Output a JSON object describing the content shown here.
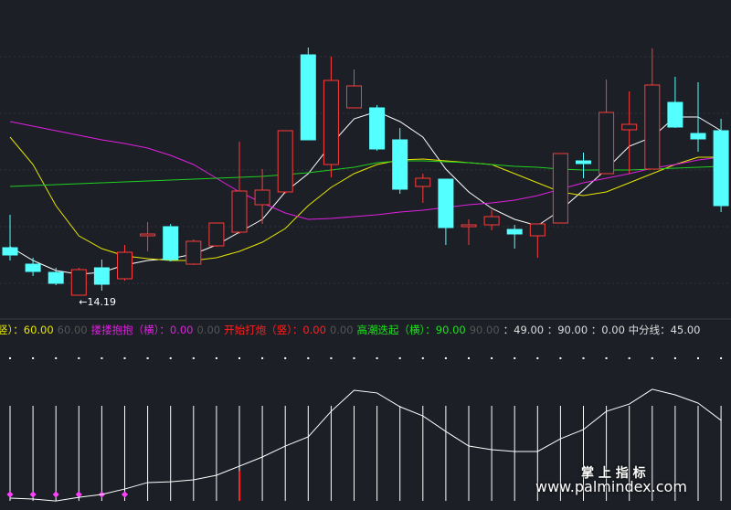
{
  "chart_data": [
    {
      "type": "candlestick",
      "up_color": "#ff3b3b",
      "down_color": "#54ffff",
      "ylim": [
        13.85,
        20.65
      ],
      "open": [
        15.23,
        14.87,
        14.69,
        14.19,
        14.79,
        14.55,
        15.49,
        15.69,
        14.87,
        15.27,
        15.57,
        16.17,
        16.45,
        19.45,
        17.05,
        18.29,
        18.29,
        17.59,
        16.57,
        16.73,
        15.69,
        15.73,
        15.63,
        15.49,
        15.77,
        17.13,
        16.85,
        17.81,
        16.95,
        18.41,
        17.73,
        17.79
      ],
      "high": [
        15.95,
        15.01,
        14.79,
        14.79,
        14.97,
        15.29,
        15.79,
        15.75,
        15.41,
        15.77,
        17.55,
        16.95,
        17.79,
        19.61,
        19.41,
        19.13,
        18.35,
        17.85,
        16.85,
        16.73,
        15.85,
        16.05,
        15.73,
        15.75,
        17.29,
        17.31,
        18.91,
        18.65,
        19.59,
        18.97,
        18.85,
        18.05
      ],
      "low": [
        14.95,
        14.61,
        14.41,
        14.19,
        14.29,
        14.51,
        15.15,
        14.93,
        14.85,
        15.25,
        15.53,
        15.75,
        16.41,
        17.59,
        16.77,
        18.29,
        17.35,
        16.41,
        16.21,
        15.29,
        15.29,
        15.61,
        15.21,
        15.01,
        15.77,
        16.75,
        16.85,
        16.85,
        16.95,
        17.85,
        17.33,
        16.01
      ],
      "close": [
        15.07,
        14.71,
        14.45,
        14.75,
        14.43,
        15.13,
        15.53,
        14.97,
        15.37,
        15.77,
        16.47,
        16.49,
        17.79,
        17.59,
        18.89,
        18.77,
        17.39,
        16.51,
        16.75,
        15.67,
        15.73,
        15.91,
        15.53,
        15.75,
        17.29,
        17.07,
        18.19,
        17.93,
        18.79,
        17.87,
        17.61,
        16.15
      ],
      "lines": [
        {
          "color": "#ffffff",
          "values": [
            15.25,
            14.95,
            14.73,
            14.65,
            14.69,
            14.85,
            14.95,
            14.99,
            15.09,
            15.29,
            15.57,
            15.85,
            16.45,
            16.85,
            17.49,
            18.05,
            18.21,
            17.99,
            17.65,
            16.95,
            16.45,
            16.09,
            15.85,
            15.71,
            16.05,
            16.49,
            16.95,
            17.45,
            17.65,
            18.09,
            18.09,
            17.79
          ]
        },
        {
          "color": "#e6e600",
          "values": [
            17.65,
            17.05,
            16.15,
            15.49,
            15.21,
            15.05,
            14.99,
            14.95,
            14.95,
            15.01,
            15.15,
            15.35,
            15.65,
            16.15,
            16.55,
            16.85,
            17.05,
            17.15,
            17.17,
            17.13,
            17.09,
            17.05,
            16.85,
            16.65,
            16.45,
            16.37,
            16.45,
            16.65,
            16.85,
            17.05,
            17.21,
            17.21
          ]
        },
        {
          "color": "#e020e0",
          "values": [
            17.99,
            17.89,
            17.79,
            17.69,
            17.59,
            17.51,
            17.41,
            17.25,
            17.05,
            16.75,
            16.45,
            16.21,
            15.99,
            15.85,
            15.87,
            15.91,
            15.95,
            16.01,
            16.05,
            16.11,
            16.17,
            16.21,
            16.27,
            16.37,
            16.51,
            16.65,
            16.75,
            16.85,
            16.97,
            17.05,
            17.15,
            17.21
          ]
        },
        {
          "color": "#20d020",
          "values": [
            16.57,
            16.59,
            16.61,
            16.63,
            16.65,
            16.67,
            16.69,
            16.71,
            16.73,
            16.75,
            16.77,
            16.79,
            16.83,
            16.87,
            16.93,
            16.99,
            17.09,
            17.13,
            17.13,
            17.11,
            17.09,
            17.05,
            17.01,
            16.99,
            16.95,
            16.93,
            16.93,
            16.93,
            16.95,
            16.97,
            16.99,
            17.01
          ]
        }
      ],
      "annotation": {
        "label": "←14.19",
        "value": 14.19
      }
    },
    {
      "type": "indicator",
      "ylim": [
        -4,
        94
      ],
      "legend": [
        {
          "text": "竖）：60.00",
          "color": "#e6e600"
        },
        {
          "text": "60.00",
          "color": "#555555"
        },
        {
          "text": "搂搂抱抱（横）：0.00",
          "color": "#e020e0"
        },
        {
          "text": "0.00",
          "color": "#555555"
        },
        {
          "text": "开始打炮（竖）：0.00",
          "color": "#ff2020"
        },
        {
          "text": "0.00",
          "color": "#555555"
        },
        {
          "text": "高潮迭起（横）：90.00",
          "color": "#20e020"
        },
        {
          "text": "90.00",
          "color": "#555555"
        },
        {
          "text": "：49.00 ：90.00 ：0.00 中分线：45.00",
          "color": "#dddddd"
        }
      ],
      "series": [
        {
          "kind": "sticks",
          "color": "#ffffff",
          "values": [
            60,
            60,
            60,
            60,
            60,
            60,
            60,
            60,
            60,
            60,
            60,
            60,
            60,
            60,
            60,
            60,
            60,
            60,
            60,
            60,
            60,
            60,
            60,
            60,
            60,
            60,
            60,
            60,
            60,
            60,
            60,
            60
          ]
        },
        {
          "kind": "sticks",
          "color": "#ff2020",
          "values": [
            null,
            null,
            null,
            null,
            null,
            null,
            null,
            null,
            null,
            null,
            19,
            null,
            null,
            null,
            null,
            null,
            null,
            null,
            null,
            null,
            null,
            null,
            null,
            null,
            null,
            null,
            null,
            null,
            null,
            null,
            null,
            null
          ]
        },
        {
          "kind": "dots",
          "color": "#ffffff",
          "values": [
            90,
            90,
            90,
            90,
            90,
            90,
            90,
            90,
            90,
            90,
            90,
            90,
            90,
            90,
            90,
            90,
            90,
            90,
            90,
            90,
            90,
            90,
            90,
            90,
            90,
            90,
            90,
            90,
            90,
            90,
            90,
            90
          ]
        },
        {
          "kind": "diamonds",
          "color": "#ff40ff",
          "values": [
            0,
            0,
            0,
            0,
            0,
            0,
            null,
            null,
            null,
            null,
            null,
            null,
            null,
            null,
            null,
            null,
            null,
            null,
            null,
            null,
            null,
            null,
            null,
            null,
            null,
            null,
            null,
            null,
            null,
            null,
            null,
            null
          ]
        },
        {
          "kind": "line",
          "color": "#ffffff",
          "values": [
            1.8,
            1.2,
            0.0,
            2.3,
            4.1,
            7.5,
            11.6,
            12.1,
            13.3,
            16.2,
            21.9,
            27.7,
            34.6,
            40.4,
            56.5,
            69.8,
            68.1,
            59.4,
            53.6,
            43.8,
            34.6,
            32.3,
            31.2,
            31.2,
            39.2,
            45.0,
            56.5,
            61.1,
            70.4,
            66.9,
            61.7,
            50.8
          ]
        }
      ]
    }
  ],
  "watermark": {
    "title": "掌 上 指 标",
    "url": "www.palmindex.com"
  }
}
